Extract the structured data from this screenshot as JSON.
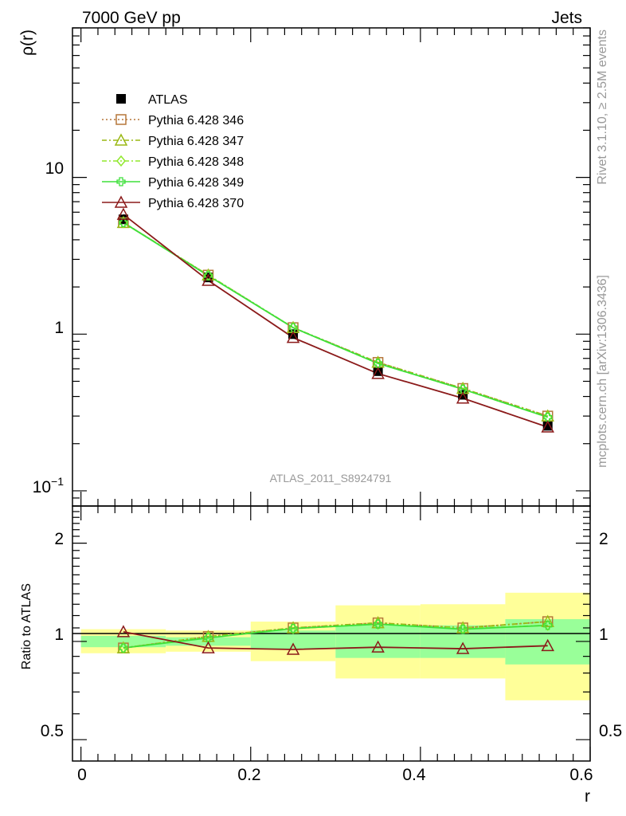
{
  "header": {
    "left": "7000 GeV pp",
    "right": "Jets"
  },
  "side_labels": {
    "rivet": "Rivet 3.1.10, ≥ 2.5M events",
    "mcplots": "mcplots.cern.ch [arXiv:1306.3436]"
  },
  "watermark": "ATLAS_2011_S8924791",
  "colors": {
    "atlas": "#000000",
    "p346": "#b5773a",
    "p347": "#9ab814",
    "p348": "#90e82c",
    "p349": "#3ee03a",
    "p370": "#8b1a1a",
    "band_outer": "#ffff99",
    "band_inner": "#99ff99"
  },
  "chart_data": {
    "type": "line",
    "xlabel": "r",
    "xlim": [
      -0.01,
      0.6
    ],
    "x_ticks": [
      "0",
      "0.2",
      "0.4",
      "0.6"
    ],
    "top_panel": {
      "ylabel": "ρ(r)",
      "yscale": "log",
      "ylim": [
        0.08,
        90
      ],
      "y_tick_labels": [
        "10⁻¹",
        "1",
        "10"
      ],
      "legend_position": "top-left"
    },
    "ratio_panel": {
      "ylabel": "Ratio to ATLAS",
      "yscale": "log",
      "ylim": [
        0.43,
        2.6
      ],
      "y_tick_labels": [
        "0.5",
        "1",
        "2"
      ]
    },
    "bins": [
      [
        0.0,
        0.1
      ],
      [
        0.1,
        0.2
      ],
      [
        0.2,
        0.3
      ],
      [
        0.3,
        0.4
      ],
      [
        0.4,
        0.5
      ],
      [
        0.5,
        0.6
      ]
    ],
    "x": [
      0.05,
      0.15,
      0.25,
      0.35,
      0.45,
      0.55
    ],
    "atlas": {
      "name": "ATLAS",
      "values": [
        5.4,
        2.3,
        1.0,
        0.58,
        0.41,
        0.26
      ]
    },
    "ratio_band_inner": [
      [
        0.96,
        1.04
      ],
      [
        0.97,
        1.03
      ],
      [
        0.95,
        1.08
      ],
      [
        0.89,
        1.12
      ],
      [
        0.89,
        1.12
      ],
      [
        0.85,
        1.17
      ]
    ],
    "ratio_band_outer": [
      [
        0.92,
        1.09
      ],
      [
        0.93,
        1.08
      ],
      [
        0.87,
        1.15
      ],
      [
        0.77,
        1.29
      ],
      [
        0.77,
        1.3
      ],
      [
        0.66,
        1.41
      ]
    ],
    "series": [
      {
        "name": "Pythia 6.428 346",
        "marker": "square-open",
        "dash": "2,3",
        "values": [
          5.15,
          2.38,
          1.1,
          0.66,
          0.45,
          0.3
        ],
        "ratio": [
          0.955,
          1.035,
          1.1,
          1.14,
          1.1,
          1.15
        ]
      },
      {
        "name": "Pythia 6.428 347",
        "marker": "triangle-open",
        "dash": "6,3,2,3",
        "values": [
          5.15,
          2.38,
          1.1,
          0.66,
          0.45,
          0.3
        ],
        "ratio": [
          0.955,
          1.035,
          1.1,
          1.14,
          1.1,
          1.15
        ]
      },
      {
        "name": "Pythia 6.428 348",
        "marker": "diamond-open",
        "dash": "6,3,2,3",
        "values": [
          5.15,
          2.38,
          1.1,
          0.65,
          0.445,
          0.295
        ],
        "ratio": [
          0.955,
          1.03,
          1.095,
          1.13,
          1.095,
          1.12
        ]
      },
      {
        "name": "Pythia 6.428 349",
        "marker": "cross-open",
        "dash": "",
        "values": [
          5.15,
          2.36,
          1.1,
          0.65,
          0.445,
          0.295
        ],
        "ratio": [
          0.955,
          1.025,
          1.095,
          1.13,
          1.09,
          1.12
        ]
      },
      {
        "name": "Pythia 6.428 370",
        "marker": "triangle-open",
        "dash": "",
        "values": [
          5.8,
          2.2,
          0.95,
          0.56,
          0.39,
          0.255
        ],
        "ratio": [
          1.07,
          0.955,
          0.945,
          0.96,
          0.95,
          0.97
        ]
      }
    ]
  }
}
